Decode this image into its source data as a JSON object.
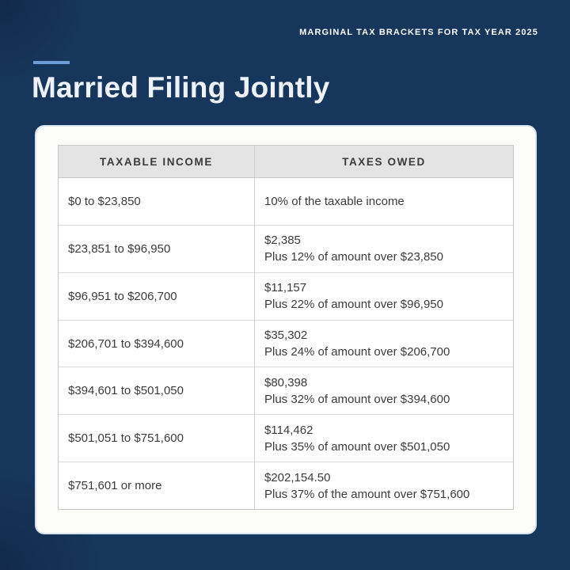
{
  "page": {
    "eyebrow": "MARGINAL TAX BRACKETS FOR TAX YEAR 2025",
    "title": "Married Filing Jointly"
  },
  "colors": {
    "background_navy": "#17365C",
    "accent_blue": "#6B9CD3",
    "card_background": "#FCFCFA",
    "table_header_gray": "#E4E4E4",
    "table_border": "#C9C9C9",
    "text_dark": "#3B3B3B",
    "title_white": "#EDF2F8"
  },
  "table": {
    "columns": [
      "TAXABLE INCOME",
      "TAXES OWED"
    ],
    "rows": [
      {
        "income": "$0 to $23,850",
        "owed_lines": [
          "10% of the taxable income"
        ]
      },
      {
        "income": "$23,851 to $96,950",
        "owed_lines": [
          "$2,385",
          "Plus 12% of amount over $23,850"
        ]
      },
      {
        "income": "$96,951 to $206,700",
        "owed_lines": [
          "$11,157",
          "Plus 22% of amount over $96,950"
        ]
      },
      {
        "income": "$206,701 to $394,600",
        "owed_lines": [
          "$35,302",
          "Plus 24% of amount over $206,700"
        ]
      },
      {
        "income": "$394,601 to $501,050",
        "owed_lines": [
          "$80,398",
          "Plus 32% of amount over $394,600"
        ]
      },
      {
        "income": "$501,051 to $751,600",
        "owed_lines": [
          "$114,462",
          "Plus 35% of amount over $501,050"
        ]
      },
      {
        "income": "$751,601 or more",
        "owed_lines": [
          "$202,154.50",
          "Plus 37% of the amount over $751,600"
        ]
      }
    ]
  },
  "chart_data": {
    "type": "table",
    "title": "Married Filing Jointly",
    "subtitle": "MARGINAL TAX BRACKETS FOR TAX YEAR 2025",
    "columns": [
      "TAXABLE INCOME",
      "TAXES OWED"
    ],
    "rows": [
      [
        "$0 to $23,850",
        "10% of the taxable income"
      ],
      [
        "$23,851 to $96,950",
        "$2,385 Plus 12% of amount over $23,850"
      ],
      [
        "$96,951 to $206,700",
        "$11,157 Plus 22% of amount over $96,950"
      ],
      [
        "$206,701 to $394,600",
        "$35,302 Plus 24% of amount over $206,700"
      ],
      [
        "$394,601 to $501,050",
        "$80,398 Plus 32% of amount over $394,600"
      ],
      [
        "$501,051 to $751,600",
        "$114,462 Plus 35% of amount over $501,050"
      ],
      [
        "$751,601 or more",
        "$202,154.50 Plus 37% of the amount over $751,600"
      ]
    ],
    "brackets": [
      {
        "rate_pct": 10,
        "lower": 0,
        "upper": 23850,
        "base_tax": 0
      },
      {
        "rate_pct": 12,
        "lower": 23851,
        "upper": 96950,
        "base_tax": 2385
      },
      {
        "rate_pct": 22,
        "lower": 96951,
        "upper": 206700,
        "base_tax": 11157
      },
      {
        "rate_pct": 24,
        "lower": 206701,
        "upper": 394600,
        "base_tax": 35302
      },
      {
        "rate_pct": 32,
        "lower": 394601,
        "upper": 501050,
        "base_tax": 80398
      },
      {
        "rate_pct": 35,
        "lower": 501051,
        "upper": 751600,
        "base_tax": 114462
      },
      {
        "rate_pct": 37,
        "lower": 751601,
        "upper": null,
        "base_tax": 202154.5
      }
    ]
  }
}
